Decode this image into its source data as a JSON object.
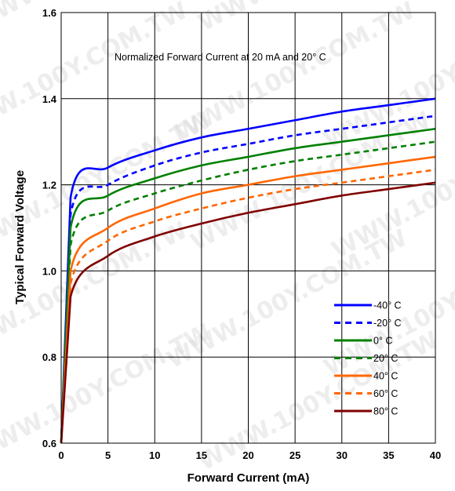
{
  "chart_data": {
    "type": "line",
    "title": "",
    "annotation": "Normalized Forward Current at 20 mA and 20° C",
    "xlabel": "Forward Current (mA)",
    "ylabel": "Typical Forward Voltage",
    "xlim": [
      0,
      40
    ],
    "ylim": [
      0.6,
      1.6
    ],
    "xticks": [
      "0",
      "5",
      "10",
      "15",
      "20",
      "25",
      "30",
      "35",
      "40"
    ],
    "yticks": [
      "0.6",
      "0.8",
      "1.0",
      "1.2",
      "1.4",
      "1.6"
    ],
    "grid": true,
    "legend_position": "bottom-right",
    "watermark": "WWW.100Y.COM.TW",
    "series": [
      {
        "name": "-40° C",
        "color": "#0000ff",
        "dash": "solid",
        "x": [
          0,
          1,
          5,
          10,
          15,
          20,
          25,
          30,
          35,
          40
        ],
        "y": [
          0.6,
          1.17,
          1.24,
          1.28,
          1.31,
          1.33,
          1.35,
          1.37,
          1.385,
          1.4
        ]
      },
      {
        "name": "-20° C",
        "color": "#0000ff",
        "dash": "dashed",
        "x": [
          0,
          1,
          5,
          10,
          15,
          20,
          25,
          30,
          35,
          40
        ],
        "y": [
          0.6,
          1.13,
          1.2,
          1.245,
          1.275,
          1.295,
          1.315,
          1.33,
          1.345,
          1.36
        ]
      },
      {
        "name": "0° C",
        "color": "#008000",
        "dash": "solid",
        "x": [
          0,
          1,
          5,
          10,
          15,
          20,
          25,
          30,
          35,
          40
        ],
        "y": [
          0.6,
          1.1,
          1.175,
          1.215,
          1.245,
          1.265,
          1.285,
          1.3,
          1.315,
          1.33
        ]
      },
      {
        "name": "20° C",
        "color": "#008000",
        "dash": "dashed",
        "x": [
          0,
          1,
          5,
          10,
          15,
          20,
          25,
          30,
          35,
          40
        ],
        "y": [
          0.6,
          1.06,
          1.14,
          1.18,
          1.21,
          1.235,
          1.255,
          1.27,
          1.285,
          1.3
        ]
      },
      {
        "name": "40° C",
        "color": "#ff6600",
        "dash": "solid",
        "x": [
          0,
          1,
          5,
          10,
          15,
          20,
          25,
          30,
          35,
          40
        ],
        "y": [
          0.6,
          1.0,
          1.1,
          1.145,
          1.18,
          1.2,
          1.22,
          1.235,
          1.25,
          1.265
        ]
      },
      {
        "name": "60° C",
        "color": "#ff6600",
        "dash": "dashed",
        "x": [
          0,
          1,
          5,
          10,
          15,
          20,
          25,
          30,
          35,
          40
        ],
        "y": [
          0.6,
          0.97,
          1.07,
          1.115,
          1.145,
          1.17,
          1.19,
          1.205,
          1.22,
          1.235
        ]
      },
      {
        "name": "80° C",
        "color": "#800000",
        "dash": "solid",
        "x": [
          0,
          1,
          5,
          10,
          15,
          20,
          25,
          30,
          35,
          40
        ],
        "y": [
          0.6,
          0.94,
          1.035,
          1.08,
          1.11,
          1.135,
          1.155,
          1.175,
          1.19,
          1.205
        ]
      }
    ]
  }
}
